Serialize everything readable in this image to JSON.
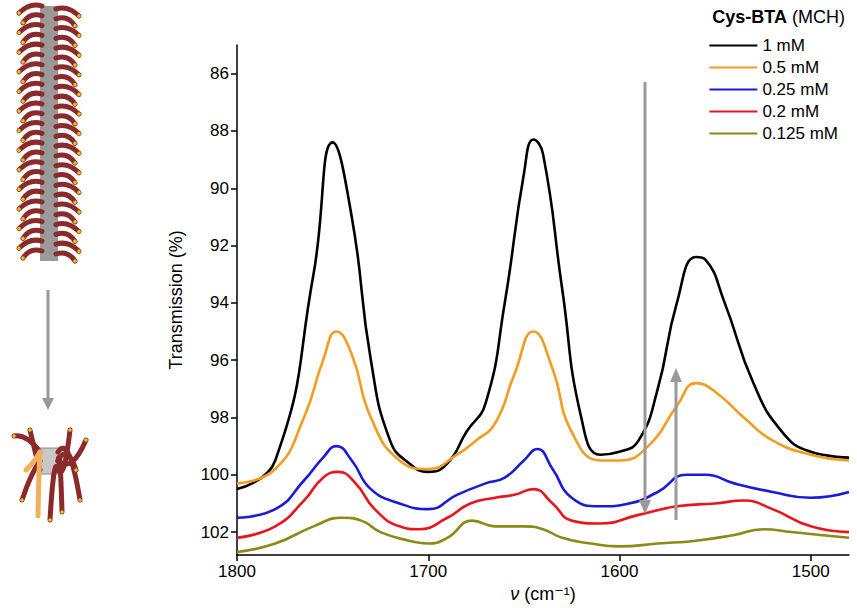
{
  "chart_data": {
    "type": "line",
    "legend_title": "Cys-BTA (MCH)",
    "legend": "top-right",
    "x_label": "ν (cm⁻¹)",
    "y_label": "Transmission (%)",
    "xlim": [
      1800,
      1480
    ],
    "xticks": [
      1800,
      1700,
      1600,
      1500
    ],
    "ylim": [
      102.8,
      85
    ],
    "yticks": [
      86,
      88,
      90,
      92,
      94,
      96,
      98,
      100,
      102
    ],
    "grid": false,
    "series": [
      {
        "name": "1 mM",
        "color": "#000000",
        "x": [
          1800,
          1780,
          1760,
          1750,
          1740,
          1730,
          1720,
          1710,
          1700,
          1690,
          1680,
          1670,
          1660,
          1650,
          1645,
          1640,
          1630,
          1620,
          1610,
          1600,
          1590,
          1580,
          1570,
          1560,
          1555,
          1545,
          1530,
          1515,
          1500,
          1480
        ],
        "values": [
          100.5,
          99.5,
          93,
          88.4,
          91,
          96,
          98.8,
          99.6,
          99.9,
          99.6,
          98.5,
          97.5,
          94,
          89.5,
          88.3,
          88.8,
          93.5,
          98,
          99.3,
          99.2,
          98.8,
          97,
          94,
          92.4,
          92.5,
          94,
          96.8,
          98.5,
          99.2,
          99.4
        ]
      },
      {
        "name": "0.5 mM",
        "color": "#f39c1f",
        "x": [
          1800,
          1780,
          1765,
          1755,
          1748,
          1740,
          1730,
          1715,
          1700,
          1685,
          1675,
          1665,
          1655,
          1645,
          1635,
          1625,
          1610,
          1600,
          1585,
          1570,
          1560,
          1550,
          1535,
          1520,
          1500,
          1480
        ],
        "values": [
          100.3,
          99.8,
          98,
          96,
          95,
          95.8,
          98,
          99.5,
          99.8,
          99.3,
          98.8,
          98.2,
          96.5,
          95,
          96.3,
          98.5,
          99.5,
          99.5,
          99,
          97.6,
          96.8,
          97.1,
          98,
          98.8,
          99.3,
          99.5
        ]
      },
      {
        "name": "0.25 mM",
        "color": "#1a1adb",
        "x": [
          1800,
          1780,
          1765,
          1755,
          1748,
          1740,
          1730,
          1715,
          1700,
          1685,
          1670,
          1660,
          1650,
          1643,
          1635,
          1625,
          1610,
          1595,
          1580,
          1565,
          1555,
          1540,
          1520,
          1500,
          1480
        ],
        "values": [
          101.5,
          101.2,
          100.2,
          99.4,
          99,
          99.5,
          100.5,
          101,
          101.2,
          100.7,
          100.3,
          100.1,
          99.5,
          99.1,
          99.8,
          100.8,
          101.1,
          101,
          100.6,
          100,
          100,
          100.3,
          100.6,
          100.8,
          100.6
        ]
      },
      {
        "name": "0.2 mM",
        "color": "#e8161c",
        "x": [
          1800,
          1780,
          1765,
          1755,
          1747,
          1738,
          1728,
          1715,
          1705,
          1690,
          1678,
          1665,
          1655,
          1645,
          1635,
          1625,
          1610,
          1590,
          1570,
          1550,
          1535,
          1520,
          1500,
          1480
        ],
        "values": [
          102.2,
          101.8,
          100.9,
          100.1,
          99.9,
          100.3,
          101.2,
          101.8,
          101.9,
          101.5,
          101,
          100.8,
          100.7,
          100.5,
          101,
          101.6,
          101.7,
          101.4,
          101.1,
          101,
          100.9,
          101.2,
          101.8,
          102
        ]
      },
      {
        "name": "0.125 mM",
        "color": "#8b8a15",
        "x": [
          1800,
          1780,
          1760,
          1745,
          1735,
          1725,
          1710,
          1700,
          1690,
          1677,
          1665,
          1650,
          1640,
          1630,
          1615,
          1600,
          1580,
          1560,
          1540,
          1525,
          1510,
          1495,
          1480
        ],
        "values": [
          102.7,
          102.4,
          101.8,
          101.5,
          101.6,
          102,
          102.3,
          102.4,
          102.2,
          101.6,
          101.8,
          101.8,
          101.9,
          102.2,
          102.4,
          102.5,
          102.4,
          102.3,
          102.1,
          101.9,
          102,
          102.1,
          102.2
        ]
      }
    ]
  }
}
